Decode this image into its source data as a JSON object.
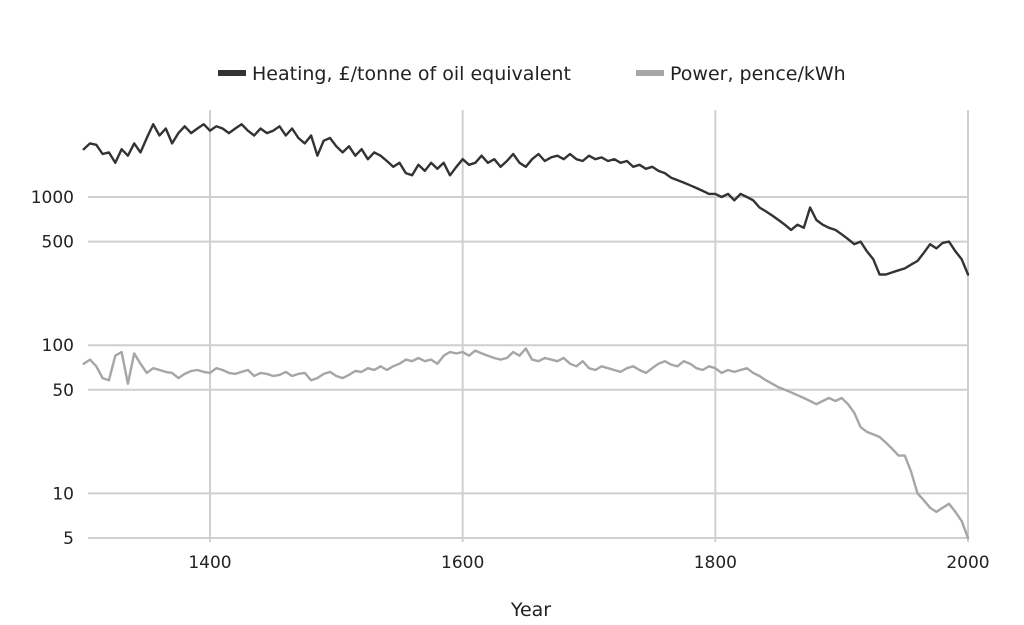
{
  "chart_data": {
    "type": "line",
    "xlabel": "Year",
    "ylabel": "",
    "xlim": [
      1300,
      2000
    ],
    "x_ticks": [
      1400,
      1600,
      1800,
      2000
    ],
    "y_scale": "log",
    "y_ticks": [
      {
        "value": 1000,
        "label": "1000"
      },
      {
        "value": 500,
        "label": "500"
      },
      {
        "value": 100,
        "label": "100"
      },
      {
        "value": 50,
        "label": "50"
      },
      {
        "value": 10,
        "label": "10"
      },
      {
        "value": 5,
        "label": "5"
      }
    ],
    "grid": true,
    "legend_position": "top-center",
    "series": [
      {
        "name": "Heating, £/tonne of oil equivalent",
        "color": "#333333",
        "points": [
          [
            1300,
            2100
          ],
          [
            1305,
            2300
          ],
          [
            1310,
            2250
          ],
          [
            1315,
            1950
          ],
          [
            1320,
            2000
          ],
          [
            1325,
            1700
          ],
          [
            1330,
            2100
          ],
          [
            1335,
            1900
          ],
          [
            1340,
            2300
          ],
          [
            1345,
            2000
          ],
          [
            1350,
            2500
          ],
          [
            1355,
            3100
          ],
          [
            1360,
            2600
          ],
          [
            1365,
            2900
          ],
          [
            1370,
            2300
          ],
          [
            1375,
            2700
          ],
          [
            1380,
            3000
          ],
          [
            1385,
            2700
          ],
          [
            1390,
            2900
          ],
          [
            1395,
            3100
          ],
          [
            1400,
            2800
          ],
          [
            1405,
            3000
          ],
          [
            1410,
            2900
          ],
          [
            1415,
            2700
          ],
          [
            1420,
            2900
          ],
          [
            1425,
            3100
          ],
          [
            1430,
            2800
          ],
          [
            1435,
            2600
          ],
          [
            1440,
            2900
          ],
          [
            1445,
            2700
          ],
          [
            1450,
            2800
          ],
          [
            1455,
            3000
          ],
          [
            1460,
            2600
          ],
          [
            1465,
            2900
          ],
          [
            1470,
            2500
          ],
          [
            1475,
            2300
          ],
          [
            1480,
            2600
          ],
          [
            1485,
            1900
          ],
          [
            1490,
            2400
          ],
          [
            1495,
            2500
          ],
          [
            1500,
            2200
          ],
          [
            1505,
            2000
          ],
          [
            1510,
            2200
          ],
          [
            1515,
            1900
          ],
          [
            1520,
            2100
          ],
          [
            1525,
            1800
          ],
          [
            1530,
            2000
          ],
          [
            1535,
            1900
          ],
          [
            1540,
            1750
          ],
          [
            1545,
            1600
          ],
          [
            1550,
            1700
          ],
          [
            1555,
            1450
          ],
          [
            1560,
            1400
          ],
          [
            1565,
            1650
          ],
          [
            1570,
            1500
          ],
          [
            1575,
            1700
          ],
          [
            1580,
            1550
          ],
          [
            1585,
            1700
          ],
          [
            1590,
            1400
          ],
          [
            1595,
            1600
          ],
          [
            1600,
            1800
          ],
          [
            1605,
            1650
          ],
          [
            1610,
            1700
          ],
          [
            1615,
            1900
          ],
          [
            1620,
            1700
          ],
          [
            1625,
            1800
          ],
          [
            1630,
            1600
          ],
          [
            1635,
            1750
          ],
          [
            1640,
            1950
          ],
          [
            1645,
            1700
          ],
          [
            1650,
            1600
          ],
          [
            1655,
            1800
          ],
          [
            1660,
            1950
          ],
          [
            1665,
            1750
          ],
          [
            1670,
            1850
          ],
          [
            1675,
            1900
          ],
          [
            1680,
            1800
          ],
          [
            1685,
            1950
          ],
          [
            1690,
            1800
          ],
          [
            1695,
            1750
          ],
          [
            1700,
            1900
          ],
          [
            1705,
            1800
          ],
          [
            1710,
            1850
          ],
          [
            1715,
            1750
          ],
          [
            1720,
            1800
          ],
          [
            1725,
            1700
          ],
          [
            1730,
            1750
          ],
          [
            1735,
            1600
          ],
          [
            1740,
            1650
          ],
          [
            1745,
            1550
          ],
          [
            1750,
            1600
          ],
          [
            1755,
            1500
          ],
          [
            1760,
            1450
          ],
          [
            1765,
            1350
          ],
          [
            1770,
            1300
          ],
          [
            1775,
            1250
          ],
          [
            1780,
            1200
          ],
          [
            1785,
            1150
          ],
          [
            1790,
            1100
          ],
          [
            1795,
            1050
          ],
          [
            1800,
            1050
          ],
          [
            1805,
            1000
          ],
          [
            1810,
            1050
          ],
          [
            1815,
            950
          ],
          [
            1820,
            1050
          ],
          [
            1825,
            1000
          ],
          [
            1830,
            950
          ],
          [
            1835,
            850
          ],
          [
            1840,
            800
          ],
          [
            1845,
            750
          ],
          [
            1850,
            700
          ],
          [
            1855,
            650
          ],
          [
            1860,
            600
          ],
          [
            1865,
            650
          ],
          [
            1870,
            620
          ],
          [
            1875,
            850
          ],
          [
            1880,
            700
          ],
          [
            1885,
            650
          ],
          [
            1890,
            620
          ],
          [
            1895,
            600
          ],
          [
            1900,
            560
          ],
          [
            1905,
            520
          ],
          [
            1910,
            480
          ],
          [
            1915,
            500
          ],
          [
            1920,
            430
          ],
          [
            1925,
            380
          ],
          [
            1930,
            300
          ],
          [
            1935,
            300
          ],
          [
            1940,
            310
          ],
          [
            1945,
            320
          ],
          [
            1950,
            330
          ],
          [
            1955,
            350
          ],
          [
            1960,
            370
          ],
          [
            1965,
            420
          ],
          [
            1970,
            480
          ],
          [
            1975,
            450
          ],
          [
            1980,
            490
          ],
          [
            1985,
            500
          ],
          [
            1990,
            430
          ],
          [
            1995,
            380
          ],
          [
            2000,
            300
          ]
        ]
      },
      {
        "name": "Power, pence/kWh",
        "color": "#a6a6a6",
        "points": [
          [
            1300,
            75
          ],
          [
            1305,
            80
          ],
          [
            1310,
            72
          ],
          [
            1315,
            60
          ],
          [
            1320,
            58
          ],
          [
            1325,
            85
          ],
          [
            1330,
            90
          ],
          [
            1335,
            55
          ],
          [
            1340,
            88
          ],
          [
            1345,
            75
          ],
          [
            1350,
            65
          ],
          [
            1355,
            70
          ],
          [
            1360,
            68
          ],
          [
            1365,
            66
          ],
          [
            1370,
            65
          ],
          [
            1375,
            60
          ],
          [
            1380,
            64
          ],
          [
            1385,
            67
          ],
          [
            1390,
            68
          ],
          [
            1395,
            66
          ],
          [
            1400,
            65
          ],
          [
            1405,
            70
          ],
          [
            1410,
            68
          ],
          [
            1415,
            65
          ],
          [
            1420,
            64
          ],
          [
            1425,
            66
          ],
          [
            1430,
            68
          ],
          [
            1435,
            62
          ],
          [
            1440,
            65
          ],
          [
            1445,
            64
          ],
          [
            1450,
            62
          ],
          [
            1455,
            63
          ],
          [
            1460,
            66
          ],
          [
            1465,
            62
          ],
          [
            1470,
            64
          ],
          [
            1475,
            65
          ],
          [
            1480,
            58
          ],
          [
            1485,
            60
          ],
          [
            1490,
            64
          ],
          [
            1495,
            66
          ],
          [
            1500,
            62
          ],
          [
            1505,
            60
          ],
          [
            1510,
            63
          ],
          [
            1515,
            67
          ],
          [
            1520,
            66
          ],
          [
            1525,
            70
          ],
          [
            1530,
            68
          ],
          [
            1535,
            72
          ],
          [
            1540,
            68
          ],
          [
            1545,
            72
          ],
          [
            1550,
            75
          ],
          [
            1555,
            80
          ],
          [
            1560,
            78
          ],
          [
            1565,
            82
          ],
          [
            1570,
            78
          ],
          [
            1575,
            80
          ],
          [
            1580,
            75
          ],
          [
            1585,
            85
          ],
          [
            1590,
            90
          ],
          [
            1595,
            88
          ],
          [
            1600,
            90
          ],
          [
            1605,
            85
          ],
          [
            1610,
            92
          ],
          [
            1615,
            88
          ],
          [
            1620,
            85
          ],
          [
            1625,
            82
          ],
          [
            1630,
            80
          ],
          [
            1635,
            82
          ],
          [
            1640,
            90
          ],
          [
            1645,
            85
          ],
          [
            1650,
            95
          ],
          [
            1655,
            80
          ],
          [
            1660,
            78
          ],
          [
            1665,
            82
          ],
          [
            1670,
            80
          ],
          [
            1675,
            78
          ],
          [
            1680,
            82
          ],
          [
            1685,
            75
          ],
          [
            1690,
            72
          ],
          [
            1695,
            78
          ],
          [
            1700,
            70
          ],
          [
            1705,
            68
          ],
          [
            1710,
            72
          ],
          [
            1715,
            70
          ],
          [
            1720,
            68
          ],
          [
            1725,
            66
          ],
          [
            1730,
            70
          ],
          [
            1735,
            72
          ],
          [
            1740,
            68
          ],
          [
            1745,
            65
          ],
          [
            1750,
            70
          ],
          [
            1755,
            75
          ],
          [
            1760,
            78
          ],
          [
            1765,
            74
          ],
          [
            1770,
            72
          ],
          [
            1775,
            78
          ],
          [
            1780,
            75
          ],
          [
            1785,
            70
          ],
          [
            1790,
            68
          ],
          [
            1795,
            72
          ],
          [
            1800,
            70
          ],
          [
            1805,
            65
          ],
          [
            1810,
            68
          ],
          [
            1815,
            66
          ],
          [
            1820,
            68
          ],
          [
            1825,
            70
          ],
          [
            1830,
            65
          ],
          [
            1835,
            62
          ],
          [
            1840,
            58
          ],
          [
            1845,
            55
          ],
          [
            1850,
            52
          ],
          [
            1855,
            50
          ],
          [
            1860,
            48
          ],
          [
            1865,
            46
          ],
          [
            1870,
            44
          ],
          [
            1875,
            42
          ],
          [
            1880,
            40
          ],
          [
            1885,
            42
          ],
          [
            1890,
            44
          ],
          [
            1895,
            42
          ],
          [
            1900,
            44
          ],
          [
            1905,
            40
          ],
          [
            1910,
            35
          ],
          [
            1915,
            28
          ],
          [
            1920,
            26
          ],
          [
            1925,
            25
          ],
          [
            1930,
            24
          ],
          [
            1935,
            22
          ],
          [
            1940,
            20
          ],
          [
            1945,
            18
          ],
          [
            1950,
            18
          ],
          [
            1955,
            14
          ],
          [
            1960,
            10
          ],
          [
            1965,
            9
          ],
          [
            1970,
            8
          ],
          [
            1975,
            7.5
          ],
          [
            1980,
            8
          ],
          [
            1985,
            8.5
          ],
          [
            1990,
            7.5
          ],
          [
            1995,
            6.5
          ],
          [
            2000,
            5
          ]
        ]
      }
    ]
  }
}
